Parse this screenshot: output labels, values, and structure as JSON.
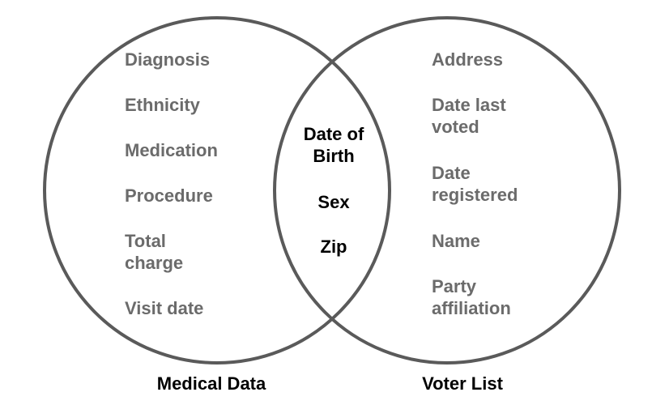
{
  "diagram": {
    "sets": {
      "left": {
        "label": "Medical Data",
        "items": [
          "Diagnosis",
          "Ethnicity",
          "Medication",
          "Procedure",
          "Total\ncharge",
          "Visit date"
        ]
      },
      "right": {
        "label": "Voter List",
        "items": [
          "Address",
          "Date last\nvoted",
          "Date\nregistered",
          "Name",
          "Party\naffiliation"
        ]
      }
    },
    "intersection": {
      "items": [
        "Date of\nBirth",
        "Sex",
        "Zip"
      ]
    },
    "colors": {
      "circle_stroke": "#5a5a5a",
      "set_item_text": "#6b6b6b",
      "shared_item_text": "#000000",
      "set_label_text": "#000000",
      "background": "#ffffff"
    }
  }
}
